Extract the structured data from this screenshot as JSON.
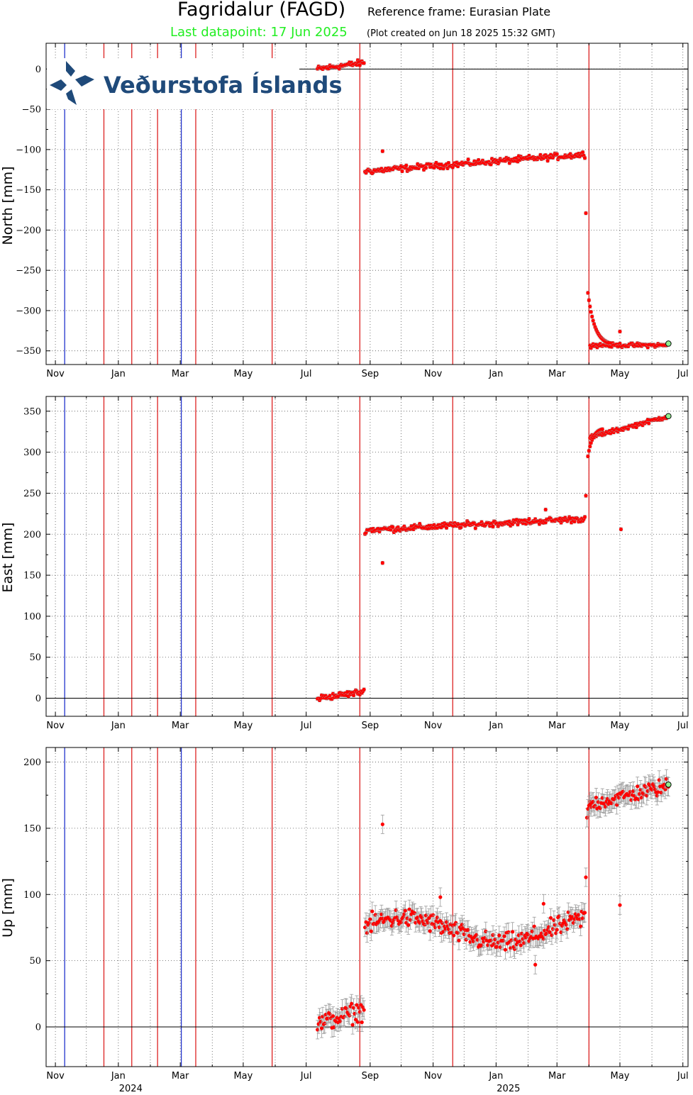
{
  "header": {
    "station": "Fagridalur (FAGD)",
    "reference_frame": "Reference frame: Eurasian Plate",
    "last_datapoint": "Last datapoint: 17 Jun 2025",
    "created": "(Plot created on Jun 18 2025 15:32 GMT)"
  },
  "logo": {
    "text": "Veðurstofa Íslands",
    "color": "#1f4a7a"
  },
  "colors": {
    "data": "#ff0000",
    "error_bar": "#999999",
    "last_point": "#90ee90",
    "event_line_red": "#dd2222",
    "event_line_blue": "#2233cc"
  },
  "chart_data": [
    {
      "type": "scatter",
      "ylabel": "North [mm]",
      "ylim": [
        -367,
        32
      ],
      "yticks": [
        0,
        -50,
        -100,
        -150,
        -200,
        -250,
        -300,
        -350
      ],
      "segments": [
        {
          "x": [
            "2024-07-12",
            "2024-08-26"
          ],
          "y0": 0,
          "y1": 8,
          "noise": 3
        },
        {
          "x": [
            "2024-08-27",
            "2025-03-28"
          ],
          "y0": -127,
          "y1": -106,
          "noise": 3
        },
        {
          "x": [
            "2025-04-02",
            "2025-06-17"
          ],
          "y0": -343,
          "y1": -343,
          "noise": 2
        }
      ],
      "transient": {
        "x": [
          "2025-03-31",
          "2025-04-20"
        ],
        "y0": -278,
        "y1": -340
      },
      "outliers": [
        {
          "x": "2024-09-13",
          "y": -102
        },
        {
          "x": "2025-03-29",
          "y": -179
        },
        {
          "x": "2025-05-01",
          "y": -326
        }
      ],
      "last_point": {
        "x": "2025-06-17",
        "y": -341
      },
      "error_bar": 2
    },
    {
      "type": "scatter",
      "ylabel": "East [mm]",
      "ylim": [
        -22,
        368
      ],
      "yticks": [
        0,
        50,
        100,
        150,
        200,
        250,
        300,
        350
      ],
      "segments": [
        {
          "x": [
            "2024-07-12",
            "2024-08-26"
          ],
          "y0": 0,
          "y1": 8,
          "noise": 3
        },
        {
          "x": [
            "2024-08-27",
            "2025-03-28"
          ],
          "y0": 205,
          "y1": 219,
          "noise": 3
        },
        {
          "x": [
            "2025-04-02",
            "2025-06-17"
          ],
          "y0": 318,
          "y1": 344,
          "noise": 2
        }
      ],
      "transient": {
        "x": [
          "2025-03-31",
          "2025-04-14"
        ],
        "y0": 295,
        "y1": 328
      },
      "outliers": [
        {
          "x": "2024-09-13",
          "y": 165
        },
        {
          "x": "2025-02-18",
          "y": 230
        },
        {
          "x": "2025-03-29",
          "y": 247
        },
        {
          "x": "2025-05-02",
          "y": 206
        }
      ],
      "last_point": {
        "x": "2025-06-17",
        "y": 344
      },
      "error_bar": 2
    },
    {
      "type": "scatter",
      "ylabel": "Up [mm]",
      "ylim": [
        -30,
        211
      ],
      "yticks": [
        0,
        50,
        100,
        150,
        200
      ],
      "segments": [
        {
          "x": [
            "2024-07-12",
            "2024-08-26"
          ],
          "y0": 2,
          "y1": 13,
          "noise": 6
        },
        {
          "x": [
            "2024-08-27",
            "2025-03-28"
          ],
          "y0": 72,
          "y1": 74,
          "noise": 6,
          "wave": 10
        },
        {
          "x": [
            "2025-04-02",
            "2025-06-17"
          ],
          "y0": 168,
          "y1": 182,
          "noise": 5
        }
      ],
      "transient": {
        "x": [
          "2025-03-30",
          "2025-04-02"
        ],
        "y0": 158,
        "y1": 168
      },
      "outliers": [
        {
          "x": "2024-09-13",
          "y": 153
        },
        {
          "x": "2025-02-16",
          "y": 93
        },
        {
          "x": "2025-02-08",
          "y": 47
        },
        {
          "x": "2025-03-29",
          "y": 113
        },
        {
          "x": "2025-05-01",
          "y": 92
        },
        {
          "x": "2024-11-08",
          "y": 98
        }
      ],
      "last_point": {
        "x": "2025-06-17",
        "y": 183
      },
      "error_bar": 7
    }
  ],
  "x_axis": {
    "range": [
      "2023-10-23",
      "2025-07-06"
    ],
    "ticks": [
      {
        "date": "2023-11-01",
        "label": "Nov"
      },
      {
        "date": "2024-01-01",
        "label": "Jan"
      },
      {
        "date": "2024-03-01",
        "label": "Mar"
      },
      {
        "date": "2024-05-01",
        "label": "May"
      },
      {
        "date": "2024-07-01",
        "label": "Jul"
      },
      {
        "date": "2024-09-01",
        "label": "Sep"
      },
      {
        "date": "2024-11-01",
        "label": "Nov"
      },
      {
        "date": "2025-01-01",
        "label": "Jan"
      },
      {
        "date": "2025-03-01",
        "label": "Mar"
      },
      {
        "date": "2025-05-01",
        "label": "May"
      },
      {
        "date": "2025-07-01",
        "label": "Jul"
      }
    ],
    "minor_ticks": [
      "2023-12-01",
      "2024-02-01",
      "2024-04-01",
      "2024-06-01",
      "2024-08-01",
      "2024-10-01",
      "2024-12-01",
      "2025-02-01",
      "2025-04-01",
      "2025-06-01"
    ],
    "years": [
      {
        "date": "2024-01-13",
        "label": "2024"
      },
      {
        "date": "2025-01-13",
        "label": "2025"
      }
    ]
  },
  "event_lines": [
    {
      "date": "2023-11-10",
      "color": "blue"
    },
    {
      "date": "2023-12-18",
      "color": "red"
    },
    {
      "date": "2024-01-14",
      "color": "red"
    },
    {
      "date": "2024-02-08",
      "color": "red"
    },
    {
      "date": "2024-03-02",
      "color": "blue"
    },
    {
      "date": "2024-03-16",
      "color": "red"
    },
    {
      "date": "2024-05-29",
      "color": "red"
    },
    {
      "date": "2024-08-22",
      "color": "red"
    },
    {
      "date": "2024-11-20",
      "color": "red"
    },
    {
      "date": "2025-04-01",
      "color": "red"
    }
  ]
}
